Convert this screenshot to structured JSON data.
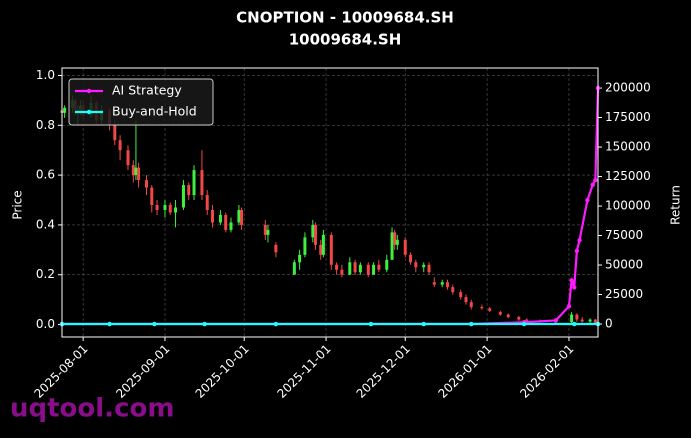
{
  "chart_data": {
    "type": "candlestick",
    "title": "CNOPTION - 10009684.SH",
    "subtitle": "10009684.SH",
    "ylabel": "Price",
    "y2label": "Return",
    "watermark": "uqtool.com",
    "grid": true,
    "legend": "upper left",
    "up_color": "#3ff03f",
    "down_color": "#f04848",
    "xlim": [
      "2025-07-24",
      "2026-02-12"
    ],
    "xticks": [
      "2025-08-01",
      "2025-09-01",
      "2025-10-01",
      "2025-11-01",
      "2025-12-01",
      "2026-01-01",
      "2026-02-01"
    ],
    "ylim": [
      -0.05,
      1.03
    ],
    "yticks": [
      {
        "value": 0,
        "label": "0.0"
      },
      0.2,
      0.4,
      0.6,
      0.8,
      {
        "value": 1,
        "label": "1.0"
      }
    ],
    "y2lim": [
      -11000,
      217000
    ],
    "y2ticks": [
      0,
      25000,
      50000,
      75000,
      100000,
      125000,
      150000,
      175000,
      200000
    ],
    "x": [
      "2025-07-24",
      "2025-07-25",
      "2025-07-28",
      "2025-07-29",
      "2025-07-30",
      "2025-07-31",
      "2025-08-01",
      "2025-08-04",
      "2025-08-06",
      "2025-08-08",
      "2025-08-11",
      "2025-08-13",
      "2025-08-15",
      "2025-08-18",
      "2025-08-20",
      "2025-08-21",
      "2025-08-22",
      "2025-08-25",
      "2025-08-27",
      "2025-08-29",
      "2025-09-01",
      "2025-09-03",
      "2025-09-05",
      "2025-09-08",
      "2025-09-10",
      "2025-09-12",
      "2025-09-15",
      "2025-09-17",
      "2025-09-19",
      "2025-09-22",
      "2025-09-24",
      "2025-09-26",
      "2025-09-29",
      "2025-09-30",
      "2025-10-09",
      "2025-10-10",
      "2025-10-13",
      "2025-10-20",
      "2025-10-22",
      "2025-10-24",
      "2025-10-27",
      "2025-10-28",
      "2025-10-30",
      "2025-10-31",
      "2025-11-03",
      "2025-11-05",
      "2025-11-07",
      "2025-11-10",
      "2025-11-12",
      "2025-11-14",
      "2025-11-17",
      "2025-11-19",
      "2025-11-21",
      "2025-11-24",
      "2025-11-26",
      "2025-11-27",
      "2025-11-28",
      "2025-12-01",
      "2025-12-03",
      "2025-12-05",
      "2025-12-08",
      "2025-12-10",
      "2025-12-12",
      "2025-12-15",
      "2025-12-17",
      "2025-12-19",
      "2025-12-22",
      "2025-12-24",
      "2025-12-26",
      "2025-12-30",
      "2026-01-02",
      "2026-01-06",
      "2026-01-09",
      "2026-01-13",
      "2026-01-16",
      "2026-01-21",
      "2026-01-27",
      "2026-02-02",
      "2026-02-04",
      "2026-02-06",
      "2026-02-09",
      "2026-02-11"
    ],
    "open": [
      0.86,
      0.85,
      0.87,
      0.9,
      0.85,
      0.86,
      0.88,
      0.84,
      0.89,
      0.82,
      0.86,
      0.8,
      0.74,
      0.7,
      0.64,
      0.6,
      0.63,
      0.58,
      0.55,
      0.48,
      0.46,
      0.48,
      0.45,
      0.47,
      0.56,
      0.52,
      0.62,
      0.52,
      0.46,
      0.41,
      0.44,
      0.38,
      0.41,
      0.46,
      0.4,
      0.36,
      0.32,
      0.2,
      0.25,
      0.28,
      0.35,
      0.4,
      0.32,
      0.28,
      0.36,
      0.24,
      0.22,
      0.2,
      0.25,
      0.21,
      0.24,
      0.2,
      0.24,
      0.22,
      0.26,
      0.37,
      0.32,
      0.34,
      0.28,
      0.25,
      0.23,
      0.24,
      0.17,
      0.16,
      0.17,
      0.15,
      0.13,
      0.11,
      0.09,
      0.07,
      0.065,
      0.05,
      0.04,
      0.03,
      0.02,
      0.015,
      0.012,
      0.01,
      0.04,
      0.02,
      0.012,
      0.02
    ],
    "high": [
      0.89,
      0.88,
      0.92,
      0.91,
      0.88,
      0.9,
      0.9,
      0.92,
      0.9,
      0.88,
      0.87,
      0.82,
      0.76,
      0.72,
      0.66,
      0.82,
      0.65,
      0.6,
      0.56,
      0.5,
      0.5,
      0.49,
      0.5,
      0.58,
      0.57,
      0.64,
      0.7,
      0.54,
      0.48,
      0.46,
      0.45,
      0.43,
      0.48,
      0.47,
      0.42,
      0.4,
      0.33,
      0.26,
      0.3,
      0.37,
      0.42,
      0.41,
      0.34,
      0.38,
      0.37,
      0.25,
      0.24,
      0.27,
      0.26,
      0.25,
      0.25,
      0.25,
      0.26,
      0.28,
      0.39,
      0.38,
      0.36,
      0.35,
      0.29,
      0.26,
      0.25,
      0.25,
      0.19,
      0.18,
      0.18,
      0.16,
      0.14,
      0.12,
      0.1,
      0.08,
      0.07,
      0.055,
      0.045,
      0.035,
      0.025,
      0.02,
      0.018,
      0.05,
      0.045,
      0.03,
      0.025,
      0.022
    ],
    "low": [
      0.84,
      0.83,
      0.85,
      0.84,
      0.8,
      0.84,
      0.82,
      0.83,
      0.8,
      0.8,
      0.78,
      0.72,
      0.66,
      0.62,
      0.57,
      0.58,
      0.55,
      0.52,
      0.45,
      0.44,
      0.43,
      0.44,
      0.39,
      0.46,
      0.5,
      0.5,
      0.5,
      0.44,
      0.39,
      0.4,
      0.37,
      0.37,
      0.4,
      0.38,
      0.34,
      0.33,
      0.27,
      0.2,
      0.22,
      0.27,
      0.33,
      0.3,
      0.26,
      0.27,
      0.22,
      0.2,
      0.19,
      0.2,
      0.2,
      0.2,
      0.19,
      0.2,
      0.21,
      0.21,
      0.26,
      0.3,
      0.3,
      0.27,
      0.24,
      0.21,
      0.21,
      0.2,
      0.15,
      0.15,
      0.14,
      0.12,
      0.1,
      0.08,
      0.06,
      0.06,
      0.05,
      0.035,
      0.025,
      0.015,
      0.01,
      0.008,
      0.006,
      0.005,
      0.01,
      0.008,
      0.005,
      0.002
    ],
    "close": [
      0.85,
      0.87,
      0.9,
      0.85,
      0.86,
      0.88,
      0.84,
      0.89,
      0.82,
      0.86,
      0.8,
      0.74,
      0.7,
      0.64,
      0.6,
      0.63,
      0.58,
      0.55,
      0.48,
      0.46,
      0.48,
      0.45,
      0.47,
      0.56,
      0.52,
      0.62,
      0.52,
      0.46,
      0.41,
      0.44,
      0.38,
      0.41,
      0.46,
      0.4,
      0.36,
      0.38,
      0.29,
      0.25,
      0.28,
      0.35,
      0.4,
      0.32,
      0.28,
      0.36,
      0.24,
      0.22,
      0.2,
      0.25,
      0.21,
      0.24,
      0.2,
      0.24,
      0.22,
      0.26,
      0.37,
      0.32,
      0.34,
      0.28,
      0.25,
      0.23,
      0.24,
      0.21,
      0.16,
      0.17,
      0.15,
      0.13,
      0.11,
      0.09,
      0.07,
      0.065,
      0.055,
      0.04,
      0.03,
      0.02,
      0.015,
      0.012,
      0.01,
      0.04,
      0.02,
      0.012,
      0.02,
      0.005
    ],
    "series": [
      {
        "name": "AI Strategy",
        "type": "line",
        "axis": "y2",
        "color": "#ff1aff",
        "x": [
          "2025-07-24",
          "2025-08-11",
          "2025-08-28",
          "2025-09-16",
          "2025-10-13",
          "2025-11-18",
          "2025-12-08",
          "2025-12-26",
          "2026-01-15",
          "2026-01-27",
          "2026-02-01",
          "2026-02-02",
          "2026-02-03",
          "2026-02-04",
          "2026-02-05",
          "2026-02-08",
          "2026-02-10",
          "2026-02-11",
          "2026-02-12"
        ],
        "values": [
          0,
          0,
          0,
          0,
          0,
          0,
          0,
          0,
          1500,
          3000,
          15000,
          37000,
          31000,
          62000,
          71000,
          105000,
          118000,
          122000,
          200000
        ]
      },
      {
        "name": "Buy-and-Hold",
        "type": "line",
        "axis": "y2",
        "color": "#1affff",
        "x": [
          "2025-07-24",
          "2025-08-11",
          "2025-08-28",
          "2025-09-16",
          "2025-10-13",
          "2025-11-18",
          "2025-12-08",
          "2025-12-26",
          "2026-01-15",
          "2026-02-03",
          "2026-02-12"
        ],
        "values": [
          0,
          0,
          0,
          0,
          0,
          0,
          0,
          0,
          0,
          0,
          0
        ]
      }
    ]
  }
}
